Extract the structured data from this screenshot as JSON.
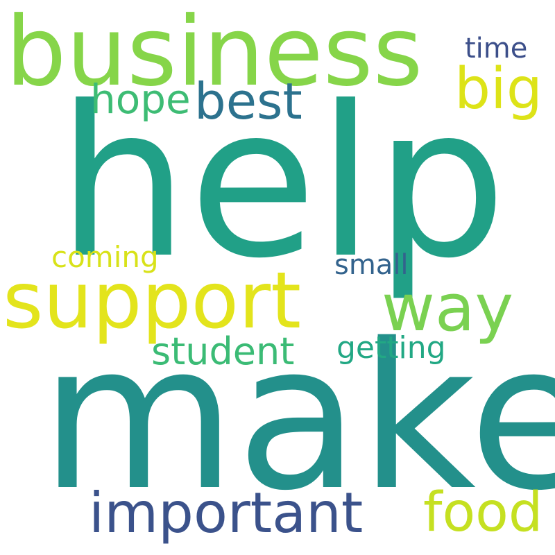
{
  "word_cloud": {
    "words": [
      {
        "text": "help",
        "color": "#21a087"
      },
      {
        "text": "make",
        "color": "#23908b"
      },
      {
        "text": "business",
        "color": "#86d549"
      },
      {
        "text": "support",
        "color": "#e3e41c"
      },
      {
        "text": "important",
        "color": "#3b528b"
      },
      {
        "text": "way",
        "color": "#7ad151"
      },
      {
        "text": "food",
        "color": "#c5e021"
      },
      {
        "text": "best",
        "color": "#2c728e"
      },
      {
        "text": "big",
        "color": "#dde318"
      },
      {
        "text": "student",
        "color": "#3bbb75"
      },
      {
        "text": "getting",
        "color": "#22a884"
      },
      {
        "text": "hope",
        "color": "#3dbc74"
      },
      {
        "text": "coming",
        "color": "#d8e219"
      },
      {
        "text": "small",
        "color": "#33638d"
      },
      {
        "text": "time",
        "color": "#3c4f8a"
      }
    ]
  }
}
